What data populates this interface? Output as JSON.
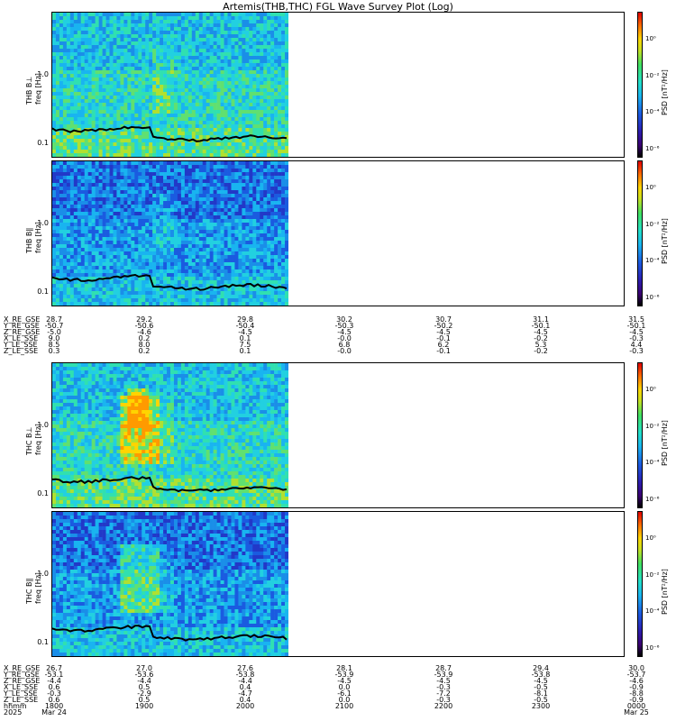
{
  "title": "Artemis(THB,THC) FGL Wave Survey Plot (Log)",
  "colors": {
    "low": "#1a2aa0",
    "mid": "#19b4f0",
    "high": "#c8e020",
    "peak": "#ff9a00",
    "trace": "#000000"
  },
  "chart_data": [
    {
      "type": "heatmap",
      "panel": "THB B⊥",
      "ylabel": "freq [Hz]",
      "ytick_labels": [
        "1.0",
        "0.1"
      ],
      "colorbar_label": "PSD [nT²/Hz]",
      "colorbar_ticks": [
        "10⁰",
        "10⁻²",
        "10⁻⁴",
        "10⁻⁶"
      ],
      "data_end_time": "~2025 Mar 24 20:30",
      "color_scale": "log"
    },
    {
      "type": "heatmap",
      "panel": "THB B∥",
      "ylabel": "freq [Hz]",
      "ytick_labels": [
        "1.0",
        "0.1"
      ],
      "colorbar_label": "PSD [nT²/Hz]",
      "colorbar_ticks": [
        "10⁰",
        "10⁻²",
        "10⁻⁴",
        "10⁻⁶"
      ],
      "data_end_time": "~2025 Mar 24 20:30",
      "color_scale": "log"
    },
    {
      "type": "heatmap",
      "panel": "THC B⊥",
      "ylabel": "freq [Hz]",
      "ytick_labels": [
        "1.0",
        "0.1"
      ],
      "colorbar_label": "PSD [nT²/Hz]",
      "colorbar_ticks": [
        "10⁰",
        "10⁻²",
        "10⁻⁴",
        "10⁻⁶"
      ],
      "data_end_time": "~2025 Mar 24 20:30",
      "color_scale": "log"
    },
    {
      "type": "heatmap",
      "panel": "THC B∥",
      "ylabel": "freq [Hz]",
      "ytick_labels": [
        "1.0",
        "0.1"
      ],
      "colorbar_label": "PSD [nT²/Hz]",
      "colorbar_ticks": [
        "10⁰",
        "10⁻²",
        "10⁻⁴",
        "10⁻⁶"
      ],
      "data_end_time": "~2025 Mar 24 20:30",
      "color_scale": "log"
    }
  ],
  "ephem_thb": {
    "labels": [
      "X_RE_GSE",
      "Y_RE_GSE",
      "Z_RE_GSE",
      "X_LE_SSE",
      "Y_LE_SSE",
      "Z_LE_SSE"
    ],
    "columns": [
      [
        "28.7",
        "-50.7",
        "-5.0",
        "9.0",
        "8.5",
        "0.3"
      ],
      [
        "29.2",
        "-50.6",
        "-4.6",
        "0.2",
        "8.0",
        "0.2"
      ],
      [
        "29.8",
        "-50.4",
        "-4.5",
        "0.1",
        "7.5",
        "0.1"
      ],
      [
        "30.2",
        "-50.3",
        "-4.5",
        "-0.0",
        "6.8",
        "-0.0"
      ],
      [
        "30.7",
        "-50.2",
        "-4.5",
        "-0.1",
        "6.2",
        "-0.1"
      ],
      [
        "31.1",
        "-50.1",
        "-4.5",
        "-0.2",
        "5.3",
        "-0.2"
      ],
      [
        "31.5",
        "-50.1",
        "-4.5",
        "-0.3",
        "4.4",
        "-0.3"
      ]
    ]
  },
  "ephem_thc": {
    "labels": [
      "X_RE_GSE",
      "Y_RE_GSE",
      "Z_RE_GSE",
      "X_LE_SSE",
      "Y_LE_SSE",
      "Z_LE_SSE",
      "hhmm",
      "2025"
    ],
    "columns": [
      [
        "26.7",
        "-53.1",
        "-4.4",
        "0.6",
        "-0.3",
        "0.6",
        "1800",
        "Mar 24"
      ],
      [
        "27.0",
        "-53.6",
        "-4.4",
        "0.5",
        "-2.9",
        "0.5",
        "1900",
        ""
      ],
      [
        "27.6",
        "-53.8",
        "-4.4",
        "0.4",
        "-4.7",
        "0.4",
        "2000",
        ""
      ],
      [
        "28.1",
        "-53.9",
        "-4.5",
        "0.0",
        "-6.1",
        "0.0",
        "2100",
        ""
      ],
      [
        "28.7",
        "-53.9",
        "-4.5",
        "-0.3",
        "-7.2",
        "-0.3",
        "2200",
        ""
      ],
      [
        "29.4",
        "-53.8",
        "-4.5",
        "-0.5",
        "-8.1",
        "-0.5",
        "2300",
        ""
      ],
      [
        "30.0",
        "-53.7",
        "-4.6",
        "-0.9",
        "-8.8",
        "-0.9",
        "0000",
        "Mar 25"
      ]
    ]
  }
}
